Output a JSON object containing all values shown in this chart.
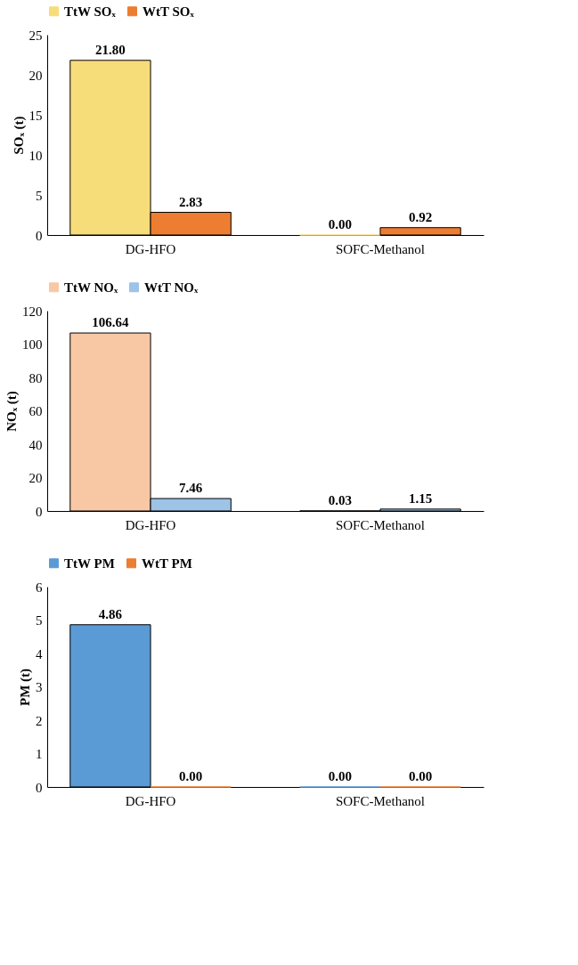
{
  "chart_data": [
    {
      "type": "bar",
      "categories": [
        "DG-HFO",
        "SOFC-Methanol"
      ],
      "ylabel": "SOₓ (t)",
      "ylim": [
        0,
        25
      ],
      "yticks": [
        0,
        5,
        10,
        15,
        20,
        25
      ],
      "legend": "top",
      "grid": false,
      "series": [
        {
          "name": "TtW SOₓ",
          "color": "#f7dc7a",
          "values": [
            21.8,
            0.0
          ],
          "value_labels": [
            "21.80",
            "0.00"
          ]
        },
        {
          "name": "WtT SOₓ",
          "color": "#ed7d31",
          "values": [
            2.83,
            0.92
          ],
          "value_labels": [
            "2.83",
            "0.92"
          ]
        }
      ]
    },
    {
      "type": "bar",
      "categories": [
        "DG-HFO",
        "SOFC-Methanol"
      ],
      "ylabel": "NOₓ (t)",
      "ylim": [
        0,
        120
      ],
      "yticks": [
        0,
        20,
        40,
        60,
        80,
        100,
        120
      ],
      "legend": "top",
      "grid": false,
      "series": [
        {
          "name": "TtW NOₓ",
          "color": "#f8c8a4",
          "values": [
            106.64,
            0.03
          ],
          "value_labels": [
            "106.64",
            "0.03"
          ]
        },
        {
          "name": "WtT NOₓ",
          "color": "#9dc3e6",
          "values": [
            7.46,
            1.15
          ],
          "value_labels": [
            "7.46",
            "1.15"
          ]
        }
      ]
    },
    {
      "type": "bar",
      "categories": [
        "DG-HFO",
        "SOFC-Methanol"
      ],
      "ylabel": "PM (t)",
      "ylim": [
        0,
        6
      ],
      "yticks": [
        0,
        1,
        2,
        3,
        4,
        5,
        6
      ],
      "legend": "top",
      "grid": false,
      "series": [
        {
          "name": "TtW PM",
          "color": "#5b9bd5",
          "values": [
            4.86,
            0.0
          ],
          "value_labels": [
            "4.86",
            "0.00"
          ]
        },
        {
          "name": "WtT PM",
          "color": "#ed7d31",
          "values": [
            0.0,
            0.0
          ],
          "value_labels": [
            "0.00",
            "0.00"
          ]
        }
      ]
    }
  ]
}
